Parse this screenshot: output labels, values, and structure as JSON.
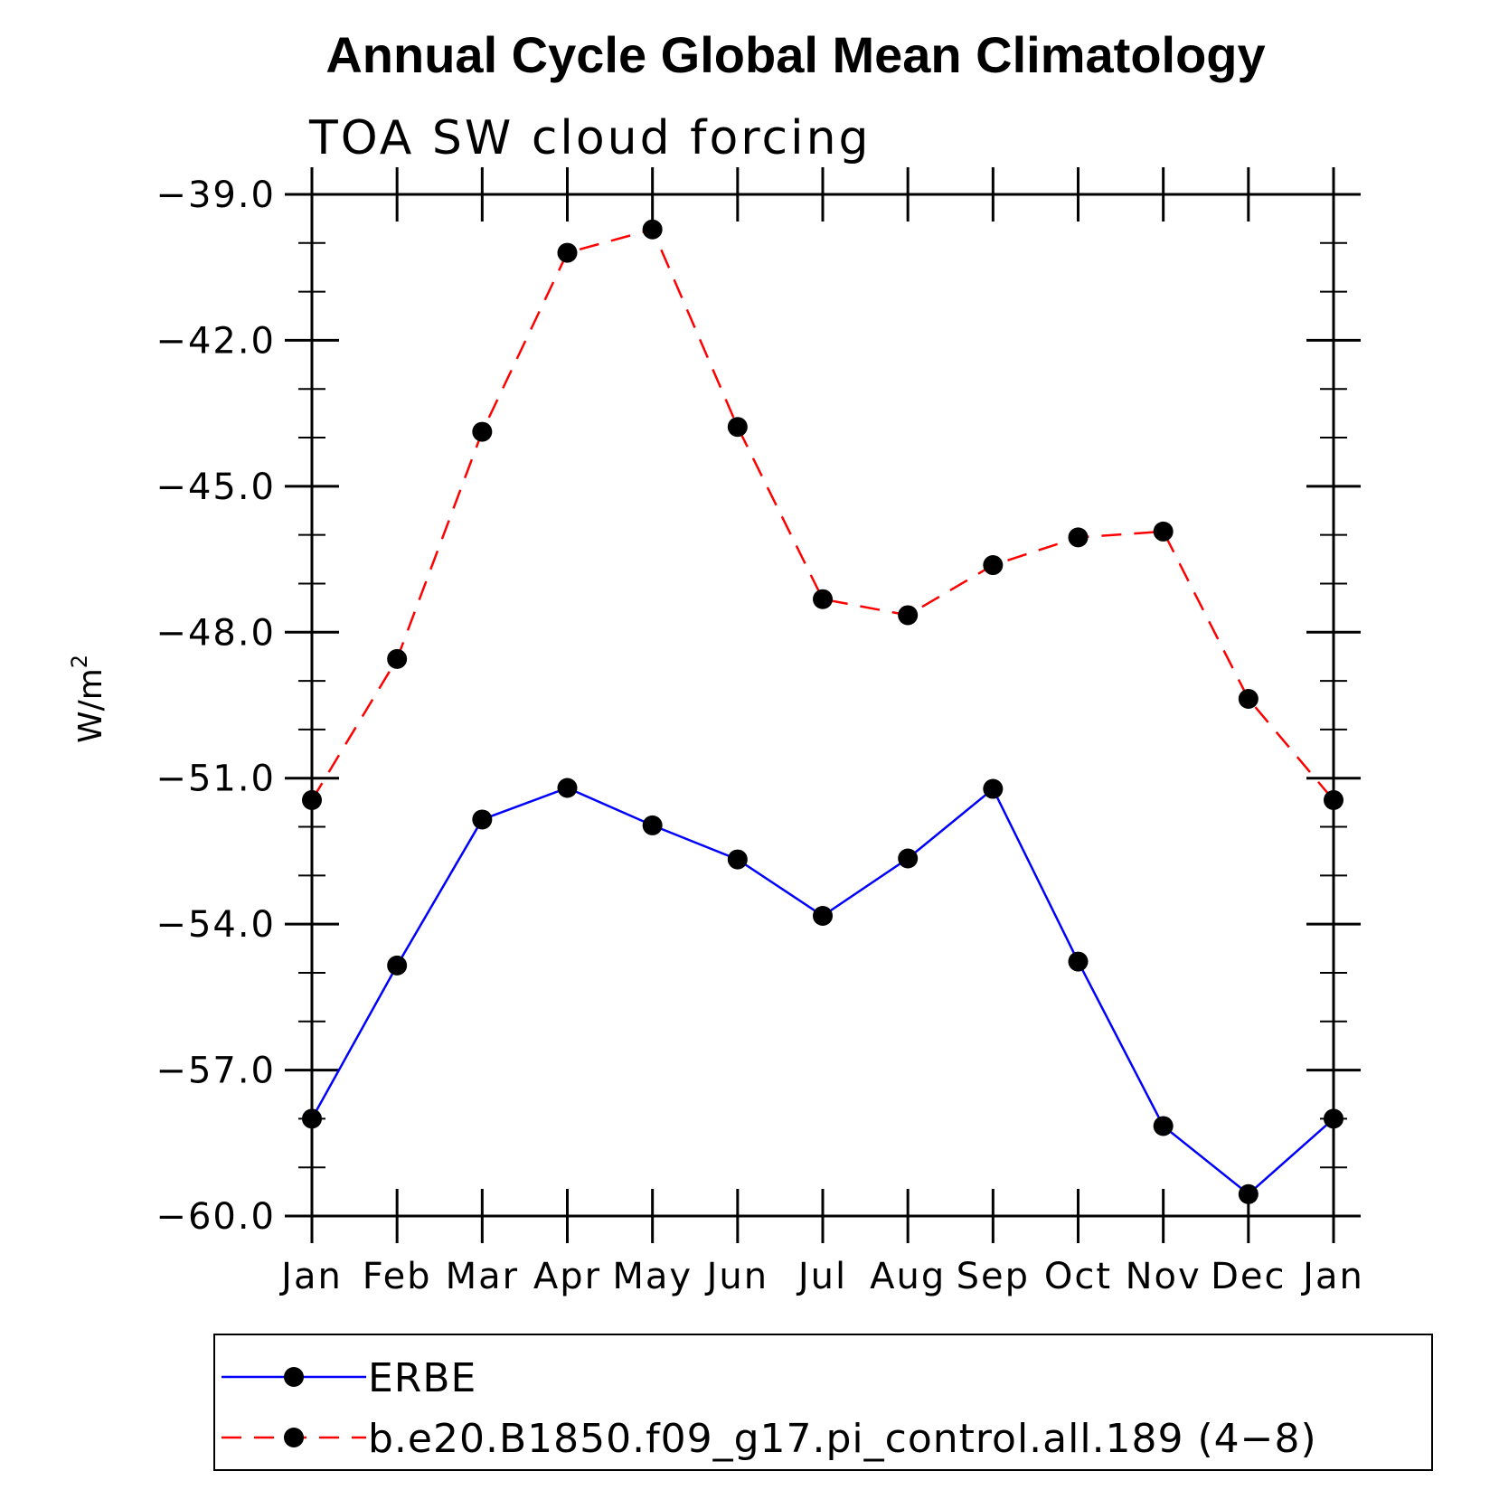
{
  "chart_data": {
    "type": "line",
    "title": "Annual Cycle Global Mean Climatology",
    "subtitle": "TOA SW cloud forcing",
    "ylabel_base": "W/m",
    "ylabel_sup": "2",
    "xlabel": "",
    "categories": [
      "Jan",
      "Feb",
      "Mar",
      "Apr",
      "May",
      "Jun",
      "Jul",
      "Aug",
      "Sep",
      "Oct",
      "Nov",
      "Dec",
      "Jan"
    ],
    "ylim": [
      -60.0,
      -39.0
    ],
    "yticks": [
      "-39.0",
      "-42.0",
      "-45.0",
      "-48.0",
      "-51.0",
      "-54.0",
      "-57.0",
      "-60.0"
    ],
    "ytick_values": [
      -39.0,
      -42.0,
      -45.0,
      -48.0,
      -51.0,
      -54.0,
      -57.0,
      -60.0
    ],
    "grid": false,
    "legend_position": "bottom",
    "series": [
      {
        "name": "ERBE",
        "color": "#0000ff",
        "dash": "solid",
        "marker": "filled-circle",
        "values": [
          -58.0,
          -54.85,
          -51.85,
          -51.2,
          -51.97,
          -52.67,
          -53.83,
          -52.65,
          -51.22,
          -54.77,
          -58.15,
          -59.55,
          -58.0
        ]
      },
      {
        "name": "b.e20.B1850.f09_g17.pi_control.all.189 (4−8)",
        "color": "#ff0000",
        "dash": "dashed",
        "marker": "filled-circle",
        "values": [
          -51.45,
          -48.55,
          -43.88,
          -40.2,
          -39.72,
          -43.78,
          -47.32,
          -47.65,
          -46.62,
          -46.05,
          -45.93,
          -49.37,
          -51.45
        ]
      }
    ]
  }
}
